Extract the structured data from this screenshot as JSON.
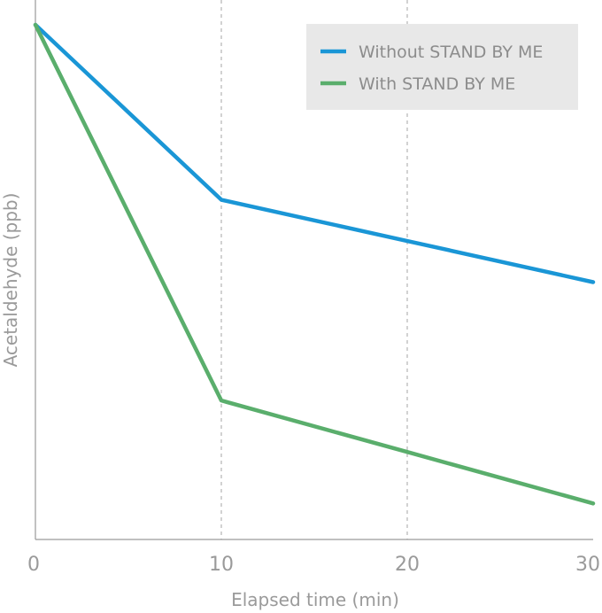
{
  "chart_data": {
    "type": "line",
    "title": "",
    "xlabel": "Elapsed time (min)",
    "ylabel": "Acetaldehyde (ppb)",
    "x": [
      0,
      10,
      20,
      30
    ],
    "x_ticks": [
      "0",
      "10",
      "20",
      "30"
    ],
    "xlim": [
      0,
      30
    ],
    "ylim": [
      0,
      100
    ],
    "y_tick_labels_shown": false,
    "grid": "vertical dashed",
    "legend_position": "top-right",
    "series": [
      {
        "name": "Without STAND BY ME",
        "color": "#1a96d6",
        "values": [
          100,
          66,
          58,
          50
        ]
      },
      {
        "name": "With STAND BY ME",
        "color": "#5aae6c",
        "values": [
          100,
          27,
          17,
          7
        ]
      }
    ]
  },
  "colors": {
    "axis": "#9a9a9a",
    "grid": "#b5b5b5",
    "legend_bg": "#e8e8e8"
  }
}
